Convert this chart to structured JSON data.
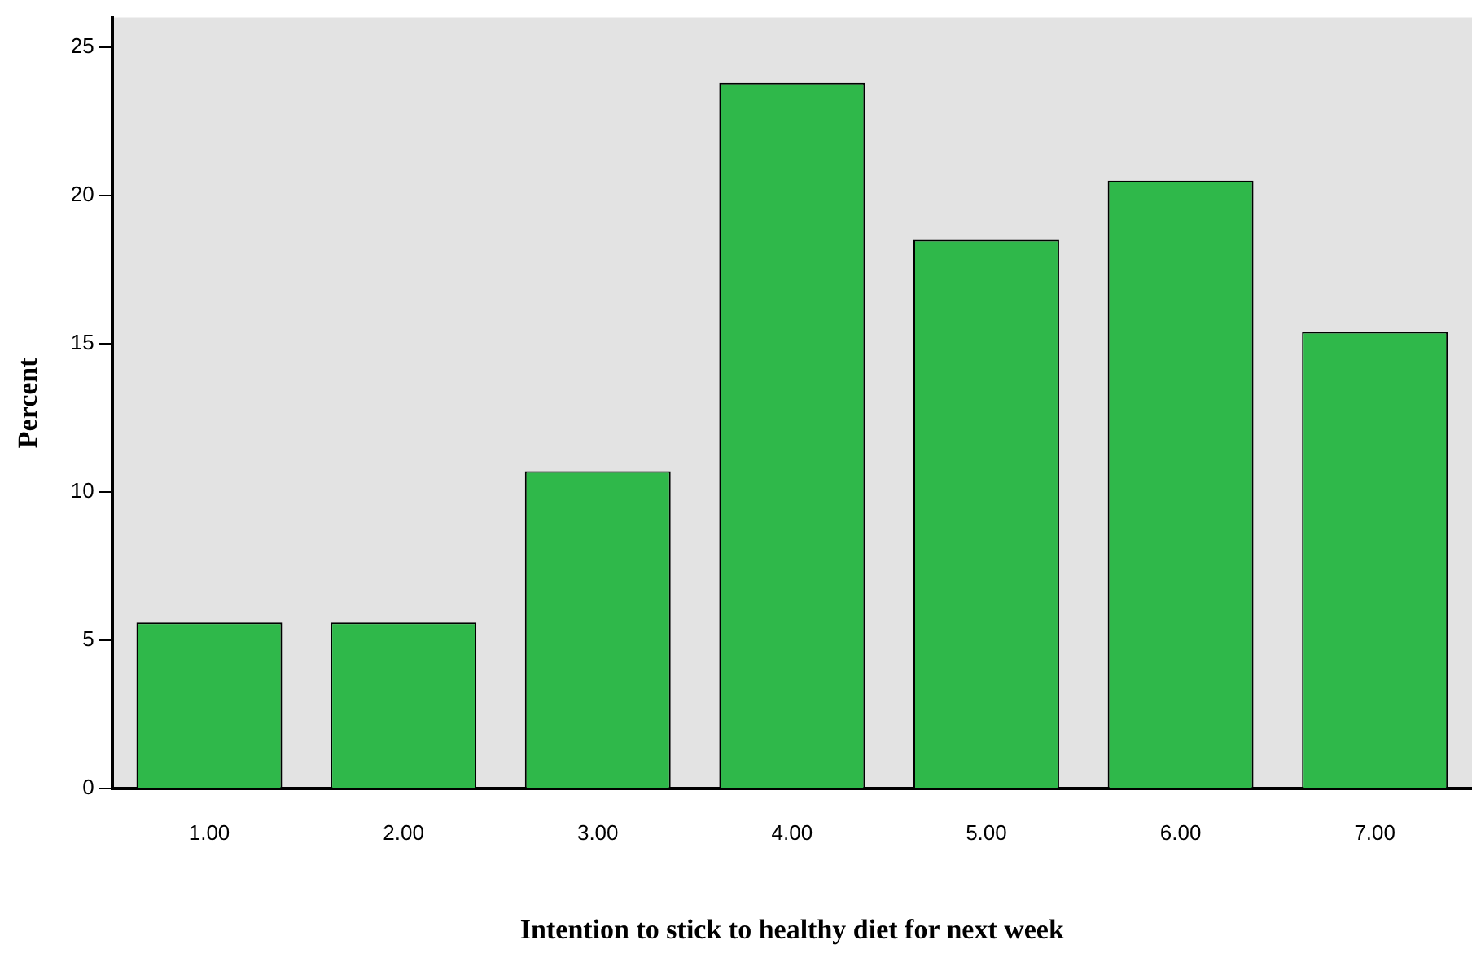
{
  "chart_data": {
    "type": "bar",
    "xlabel": "Intention to stick to healthy diet for next week",
    "ylabel": "Percent",
    "categories": [
      "1.00",
      "2.00",
      "3.00",
      "4.00",
      "5.00",
      "6.00",
      "7.00"
    ],
    "values": [
      5.6,
      5.6,
      10.7,
      23.8,
      18.5,
      20.5,
      15.4
    ],
    "color": "#2fb84a",
    "ylim": [
      0,
      26
    ],
    "yticks": [
      0,
      5,
      10,
      15,
      20,
      25
    ],
    "grid": false,
    "legend": false
  }
}
